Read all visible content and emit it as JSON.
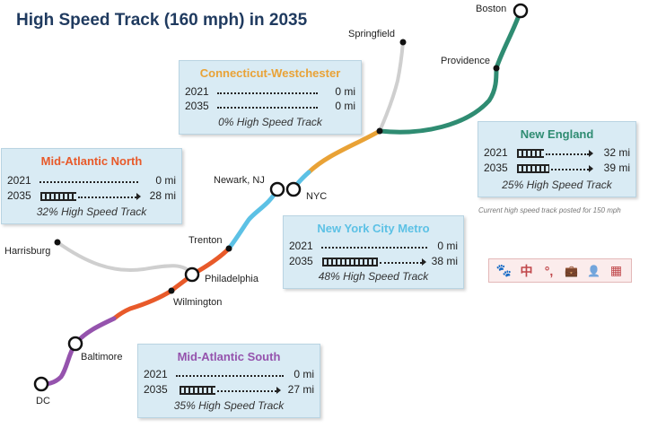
{
  "title": "High Speed Track (160 mph) in 2035",
  "colors": {
    "new_england": "#2f8c72",
    "connecticut_westchester": "#e9a236",
    "new_york_city_metro": "#5cc1e5",
    "mid_atlantic_north": "#e85a2a",
    "mid_atlantic_south": "#9553ad",
    "spur": "#cfcfcf",
    "card_bg": "#d9ebf4",
    "title": "#1f3a5f"
  },
  "stations": {
    "boston": "Boston",
    "providence": "Providence",
    "springfield": "Springfield",
    "newark": "Newark, NJ",
    "nyc": "NYC",
    "trenton": "Trenton",
    "harrisburg": "Harrisburg",
    "philadelphia": "Philadelphia",
    "wilmington": "Wilmington",
    "baltimore": "Baltimore",
    "dc": "DC"
  },
  "regions": {
    "connecticut_westchester": {
      "name": "Connecticut-Westchester",
      "rows": [
        {
          "year": "2021",
          "value": "0 mi",
          "hs_fraction": 0
        },
        {
          "year": "2035",
          "value": "0 mi",
          "hs_fraction": 0
        }
      ],
      "footer": "0% High Speed Track"
    },
    "new_england": {
      "name": "New England",
      "rows": [
        {
          "year": "2021",
          "value": "32 mi",
          "hs_fraction": 0.2
        },
        {
          "year": "2035",
          "value": "39 mi",
          "hs_fraction": 0.25
        }
      ],
      "footer": "25% High Speed Track"
    },
    "mid_atlantic_north": {
      "name": "Mid-Atlantic North",
      "rows": [
        {
          "year": "2021",
          "value": "0 mi",
          "hs_fraction": 0
        },
        {
          "year": "2035",
          "value": "28 mi",
          "hs_fraction": 0.32
        }
      ],
      "footer": "32% High Speed Track"
    },
    "new_york_city_metro": {
      "name": "New York City Metro",
      "rows": [
        {
          "year": "2021",
          "value": "0 mi",
          "hs_fraction": 0
        },
        {
          "year": "2035",
          "value": "38 mi",
          "hs_fraction": 0.48
        }
      ],
      "footer": "48% High Speed Track"
    },
    "mid_atlantic_south": {
      "name": "Mid-Atlantic South",
      "rows": [
        {
          "year": "2021",
          "value": "0 mi",
          "hs_fraction": 0
        },
        {
          "year": "2035",
          "value": "27 mi",
          "hs_fraction": 0.35
        }
      ],
      "footer": "35% High Speed Track"
    }
  },
  "note": "Current high speed track posted for 150 mph",
  "toolbar": {
    "icons": [
      "paw-icon",
      "chinese-char-icon",
      "punctuation-icon",
      "briefcase-icon",
      "person-icon",
      "grid-icon"
    ],
    "glyphs": [
      "🐾",
      "中",
      "°,",
      "💼",
      "👤",
      "▦"
    ]
  }
}
